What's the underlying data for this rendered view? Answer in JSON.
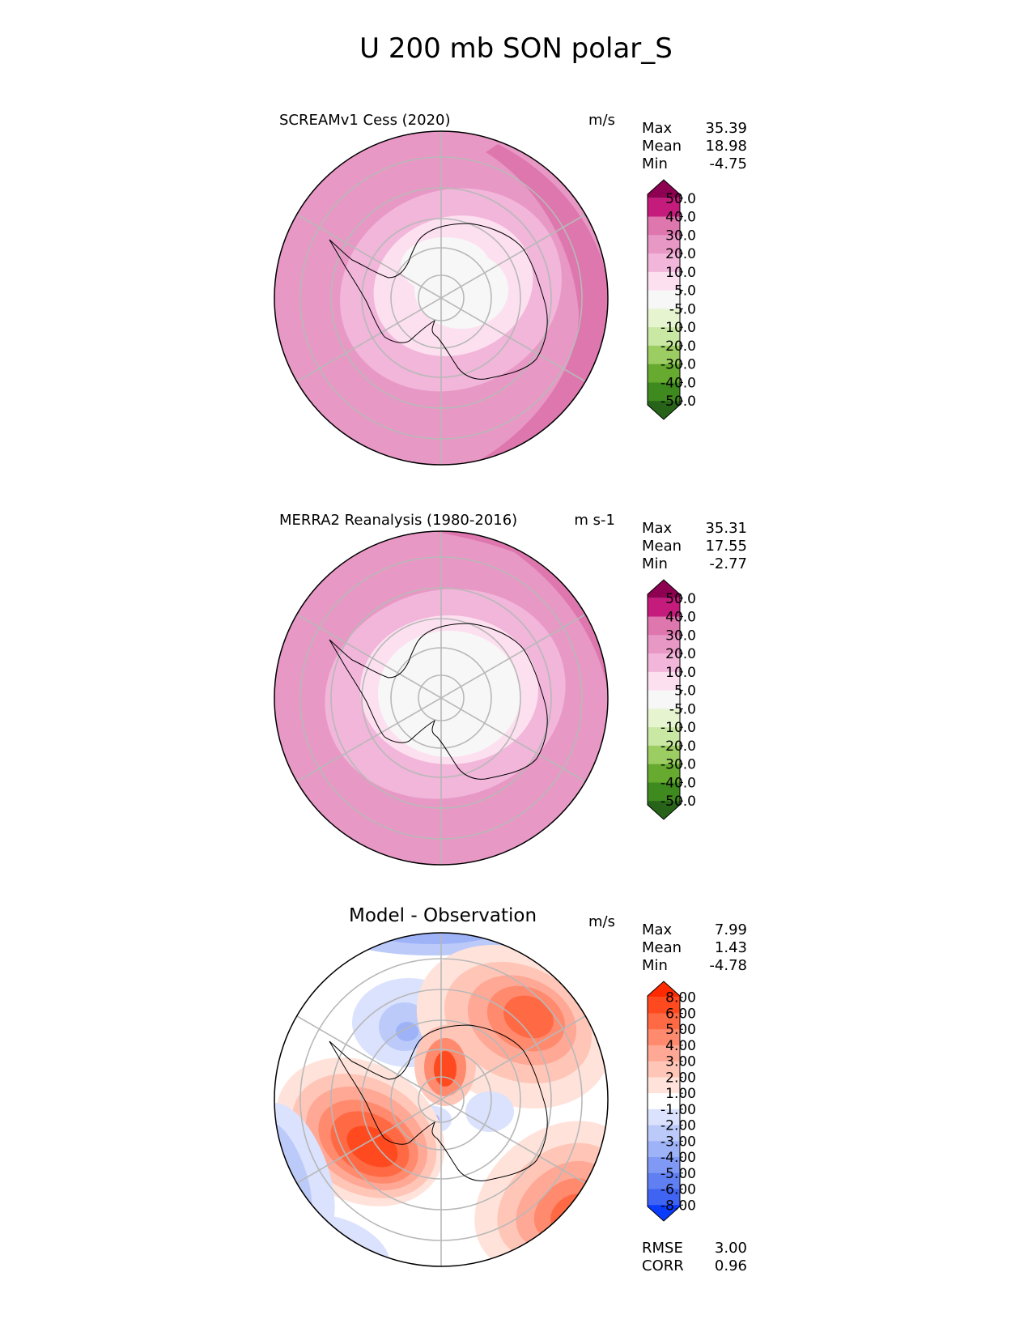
{
  "title": "U 200 mb SON polar_S",
  "chart_data": [
    {
      "type": "contourf-polar",
      "projection": "south polar stereographic",
      "title": "SCREAMv1 Cess (2020)",
      "units": "m/s",
      "stats": {
        "max": "35.39",
        "mean": "18.98",
        "min": "-4.75"
      },
      "colorbar": {
        "ticks": [
          "50.0",
          "40.0",
          "30.0",
          "20.0",
          "10.0",
          "5.0",
          "-5.0",
          "-10.0",
          "-20.0",
          "-30.0",
          "-40.0",
          "-50.0"
        ],
        "colors": [
          "#8e0152",
          "#c51b7d",
          "#de77ae",
          "#e898c5",
          "#f1b6da",
          "#fde0ef",
          "#f7f7f7",
          "#e6f5d0",
          "#c9e8a3",
          "#9ccd63",
          "#66aa30",
          "#3f8a1f",
          "#276419"
        ],
        "extend": "both"
      }
    },
    {
      "type": "contourf-polar",
      "projection": "south polar stereographic",
      "title": "MERRA2 Reanalysis (1980-2016)",
      "units": "m s-1",
      "stats": {
        "max": "35.31",
        "mean": "17.55",
        "min": "-2.77"
      },
      "colorbar": {
        "ticks": [
          "50.0",
          "40.0",
          "30.0",
          "20.0",
          "10.0",
          "5.0",
          "-5.0",
          "-10.0",
          "-20.0",
          "-30.0",
          "-40.0",
          "-50.0"
        ],
        "colors": [
          "#8e0152",
          "#c51b7d",
          "#de77ae",
          "#e898c5",
          "#f1b6da",
          "#fde0ef",
          "#f7f7f7",
          "#e6f5d0",
          "#c9e8a3",
          "#9ccd63",
          "#66aa30",
          "#3f8a1f",
          "#276419"
        ],
        "extend": "both"
      }
    },
    {
      "type": "contourf-polar",
      "projection": "south polar stereographic",
      "title": "Model - Observation",
      "units": "m/s",
      "stats": {
        "max": "7.99",
        "mean": "1.43",
        "min": "-4.78"
      },
      "metrics": {
        "rmse": "3.00",
        "corr": "0.96"
      },
      "colorbar": {
        "ticks": [
          "8.00",
          "6.00",
          "5.00",
          "4.00",
          "3.00",
          "2.00",
          "1.00",
          "-1.00",
          "-2.00",
          "-3.00",
          "-4.00",
          "-5.00",
          "-6.00",
          "-8.00"
        ],
        "colors": [
          "#ff2a00",
          "#ff4a1f",
          "#ff6a45",
          "#ff8a6e",
          "#ffa895",
          "#ffc6b8",
          "#ffe3da",
          "#ffffff",
          "#dae2fd",
          "#bccafa",
          "#9eb2f7",
          "#7f99f5",
          "#5f7ff3",
          "#3f63f2",
          "#0a3cff"
        ],
        "extend": "both"
      }
    }
  ],
  "labels": {
    "max": "Max",
    "mean": "Mean",
    "min": "Min",
    "rmse": "RMSE",
    "corr": "CORR"
  }
}
